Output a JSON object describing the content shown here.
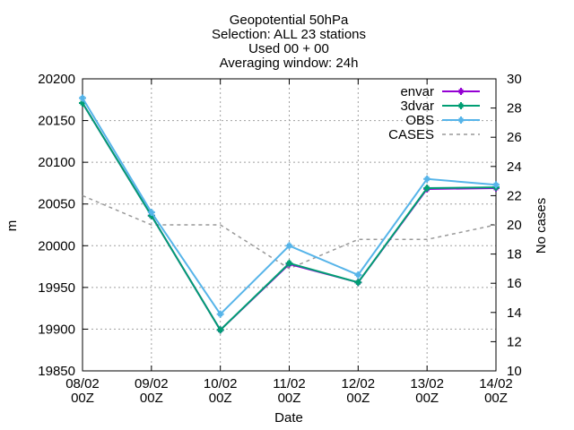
{
  "chart_data": {
    "type": "line",
    "title_lines": [
      "Geopotential 50hPa",
      "Selection: ALL      23 stations",
      "Used 00 + 00",
      "Averaging window: 24h"
    ],
    "xlabel": "Date",
    "ylabel": "m",
    "y2label": "No cases",
    "categories": [
      [
        "08/02",
        "00Z"
      ],
      [
        "09/02",
        "00Z"
      ],
      [
        "10/02",
        "00Z"
      ],
      [
        "11/02",
        "00Z"
      ],
      [
        "12/02",
        "00Z"
      ],
      [
        "13/02",
        "00Z"
      ],
      [
        "14/02",
        "00Z"
      ]
    ],
    "ylim": [
      19850,
      20200
    ],
    "yticks": [
      "19850",
      "19900",
      "19950",
      "20000",
      "20050",
      "20100",
      "20150",
      "20200"
    ],
    "y2lim": [
      10,
      30
    ],
    "y2ticks": [
      "10",
      "12",
      "14",
      "16",
      "18",
      "20",
      "22",
      "24",
      "26",
      "28",
      "30"
    ],
    "grid": true,
    "legend_position": "top-right",
    "series": [
      {
        "name": "envar",
        "axis": "y1",
        "color": "#9400d3",
        "style": "solid",
        "marker": "plus",
        "values": [
          20171,
          20036,
          19899,
          19978,
          19956,
          20068,
          20069
        ]
      },
      {
        "name": "3dvar",
        "axis": "y1",
        "color": "#009e73",
        "style": "solid",
        "marker": "plus",
        "values": [
          20171,
          20036,
          19899,
          19979,
          19956,
          20069,
          20070
        ]
      },
      {
        "name": "OBS",
        "axis": "y1",
        "color": "#56b4e9",
        "style": "solid",
        "marker": "plus",
        "values": [
          20177,
          20040,
          19918,
          20000,
          19965,
          20080,
          20073
        ]
      },
      {
        "name": "CASES",
        "axis": "y2",
        "color": "#999999",
        "style": "dashed",
        "marker": "none",
        "values": [
          22,
          20,
          20,
          17,
          19,
          19,
          20
        ]
      }
    ]
  }
}
